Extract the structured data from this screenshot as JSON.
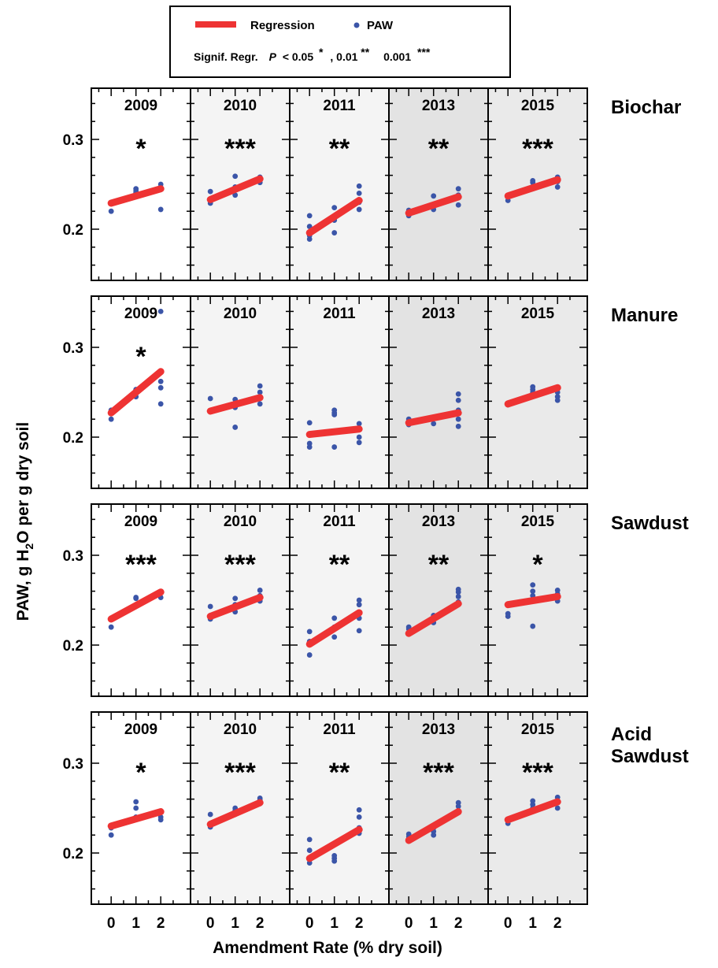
{
  "legend": {
    "regression_label": "Regression",
    "paw_label": "PAW",
    "signif_prefix": "Signif. Regr.",
    "p_label": "P",
    "threshold_1": "< 0.05",
    "star_1": "*",
    "threshold_2": ", 0.01",
    "star_2": "**",
    "threshold_3": "0.001",
    "star_3": "***"
  },
  "colors": {
    "regression": "#ee3333",
    "points": "#3b55a8",
    "panel_white": "#ffffff",
    "panel_light": "#f4f4f4",
    "panel_mid": "#eaeaea",
    "panel_dark": "#e3e3e3"
  },
  "axes": {
    "ylabel": "PAW, g H2O per g dry soil",
    "ylabel_main": "PAW, g H",
    "ylabel_sub": "2",
    "ylabel_rest": "O per g dry soil",
    "xlabel": "Amendment Rate (% dry soil)",
    "yticks": [
      "0.3",
      "0.2"
    ],
    "xticks": [
      "0",
      "1",
      "2"
    ]
  },
  "chart_data": {
    "type": "scatter",
    "layout": "small-multiples grid, 4 rows (amendments) x 5 columns (years)",
    "years": [
      "2009",
      "2010",
      "2011",
      "2013",
      "2015"
    ],
    "xlim": [
      -0.8,
      3.2
    ],
    "ylim": [
      0.15,
      0.35
    ],
    "xticks": [
      0,
      1,
      2
    ],
    "yticks": [
      0.2,
      0.3
    ],
    "rows": [
      {
        "amendment": "Biochar",
        "panels": [
          {
            "year": "2009",
            "sig": "*",
            "fit": [
              0.229,
              0.245
            ],
            "points": [
              [
                0,
                0.22
              ],
              [
                0,
                0.229
              ],
              [
                1,
                0.241
              ],
              [
                1,
                0.245
              ],
              [
                1,
                0.243
              ],
              [
                2,
                0.222
              ],
              [
                2,
                0.246
              ],
              [
                2,
                0.25
              ]
            ]
          },
          {
            "year": "2010",
            "sig": "***",
            "fit": [
              0.233,
              0.256
            ],
            "points": [
              [
                0,
                0.229
              ],
              [
                0,
                0.232
              ],
              [
                0,
                0.242
              ],
              [
                1,
                0.238
              ],
              [
                1,
                0.247
              ],
              [
                1,
                0.259
              ],
              [
                2,
                0.252
              ],
              [
                2,
                0.256
              ],
              [
                2,
                0.258
              ]
            ]
          },
          {
            "year": "2011",
            "sig": "**",
            "fit": [
              0.196,
              0.232
            ],
            "points": [
              [
                0,
                0.189
              ],
              [
                0,
                0.193
              ],
              [
                0,
                0.203
              ],
              [
                0,
                0.215
              ],
              [
                1,
                0.196
              ],
              [
                1,
                0.21
              ],
              [
                1,
                0.224
              ],
              [
                2,
                0.222
              ],
              [
                2,
                0.23
              ],
              [
                2,
                0.24
              ],
              [
                2,
                0.248
              ]
            ]
          },
          {
            "year": "2013",
            "sig": "**",
            "fit": [
              0.218,
              0.236
            ],
            "points": [
              [
                0,
                0.215
              ],
              [
                0,
                0.219
              ],
              [
                0,
                0.221
              ],
              [
                1,
                0.222
              ],
              [
                1,
                0.227
              ],
              [
                1,
                0.237
              ],
              [
                2,
                0.227
              ],
              [
                2,
                0.238
              ],
              [
                2,
                0.245
              ]
            ]
          },
          {
            "year": "2015",
            "sig": "***",
            "fit": [
              0.237,
              0.255
            ],
            "points": [
              [
                0,
                0.232
              ],
              [
                0,
                0.237
              ],
              [
                1,
                0.245
              ],
              [
                1,
                0.252
              ],
              [
                1,
                0.254
              ],
              [
                2,
                0.247
              ],
              [
                2,
                0.253
              ],
              [
                2,
                0.258
              ]
            ]
          }
        ]
      },
      {
        "amendment": "Manure",
        "panels": [
          {
            "year": "2009",
            "sig": "*",
            "fit": [
              0.227,
              0.273
            ],
            "points": [
              [
                0,
                0.22
              ],
              [
                0,
                0.227
              ],
              [
                0,
                0.23
              ],
              [
                1,
                0.245
              ],
              [
                1,
                0.25
              ],
              [
                1,
                0.253
              ],
              [
                2,
                0.237
              ],
              [
                2,
                0.255
              ],
              [
                2,
                0.262
              ],
              [
                2,
                0.34
              ]
            ]
          },
          {
            "year": "2010",
            "sig": "",
            "fit": [
              0.229,
              0.244
            ],
            "points": [
              [
                0,
                0.229
              ],
              [
                0,
                0.243
              ],
              [
                1,
                0.211
              ],
              [
                1,
                0.233
              ],
              [
                1,
                0.242
              ],
              [
                2,
                0.237
              ],
              [
                2,
                0.25
              ],
              [
                2,
                0.257
              ]
            ]
          },
          {
            "year": "2011",
            "sig": "",
            "fit": [
              0.203,
              0.209
            ],
            "points": [
              [
                0,
                0.189
              ],
              [
                0,
                0.193
              ],
              [
                0,
                0.216
              ],
              [
                1,
                0.189
              ],
              [
                1,
                0.225
              ],
              [
                1,
                0.227
              ],
              [
                1,
                0.23
              ],
              [
                2,
                0.194
              ],
              [
                2,
                0.2
              ],
              [
                2,
                0.21
              ],
              [
                2,
                0.215
              ]
            ]
          },
          {
            "year": "2013",
            "sig": "",
            "fit": [
              0.216,
              0.227
            ],
            "points": [
              [
                0,
                0.214
              ],
              [
                0,
                0.218
              ],
              [
                0,
                0.22
              ],
              [
                1,
                0.215
              ],
              [
                1,
                0.222
              ],
              [
                2,
                0.212
              ],
              [
                2,
                0.22
              ],
              [
                2,
                0.23
              ],
              [
                2,
                0.241
              ],
              [
                2,
                0.248
              ]
            ]
          },
          {
            "year": "2015",
            "sig": "",
            "fit": [
              0.237,
              0.255
            ],
            "points": [
              [
                0,
                0.236
              ],
              [
                1,
                0.25
              ],
              [
                1,
                0.253
              ],
              [
                1,
                0.256
              ],
              [
                2,
                0.241
              ],
              [
                2,
                0.245
              ],
              [
                2,
                0.25
              ]
            ]
          }
        ]
      },
      {
        "amendment": "Sawdust",
        "panels": [
          {
            "year": "2009",
            "sig": "***",
            "fit": [
              0.229,
              0.259
            ],
            "points": [
              [
                0,
                0.22
              ],
              [
                0,
                0.23
              ],
              [
                1,
                0.252
              ],
              [
                1,
                0.253
              ],
              [
                2,
                0.253
              ],
              [
                2,
                0.258
              ]
            ]
          },
          {
            "year": "2010",
            "sig": "***",
            "fit": [
              0.232,
              0.253
            ],
            "points": [
              [
                0,
                0.229
              ],
              [
                0,
                0.233
              ],
              [
                0,
                0.243
              ],
              [
                1,
                0.237
              ],
              [
                1,
                0.245
              ],
              [
                1,
                0.252
              ],
              [
                2,
                0.249
              ],
              [
                2,
                0.255
              ],
              [
                2,
                0.261
              ]
            ]
          },
          {
            "year": "2011",
            "sig": "**",
            "fit": [
              0.201,
              0.236
            ],
            "points": [
              [
                0,
                0.189
              ],
              [
                0,
                0.204
              ],
              [
                0,
                0.215
              ],
              [
                1,
                0.209
              ],
              [
                1,
                0.22
              ],
              [
                1,
                0.23
              ],
              [
                2,
                0.216
              ],
              [
                2,
                0.23
              ],
              [
                2,
                0.245
              ],
              [
                2,
                0.25
              ]
            ]
          },
          {
            "year": "2013",
            "sig": "**",
            "fit": [
              0.213,
              0.246
            ],
            "points": [
              [
                0,
                0.213
              ],
              [
                0,
                0.218
              ],
              [
                0,
                0.22
              ],
              [
                1,
                0.225
              ],
              [
                1,
                0.229
              ],
              [
                1,
                0.233
              ],
              [
                2,
                0.248
              ],
              [
                2,
                0.254
              ],
              [
                2,
                0.259
              ],
              [
                2,
                0.262
              ]
            ]
          },
          {
            "year": "2015",
            "sig": "*",
            "fit": [
              0.245,
              0.254
            ],
            "points": [
              [
                0,
                0.232
              ],
              [
                0,
                0.235
              ],
              [
                1,
                0.221
              ],
              [
                1,
                0.255
              ],
              [
                1,
                0.26
              ],
              [
                1,
                0.267
              ],
              [
                2,
                0.249
              ],
              [
                2,
                0.257
              ],
              [
                2,
                0.261
              ]
            ]
          }
        ]
      },
      {
        "amendment": "Acid Sawdust",
        "panels": [
          {
            "year": "2009",
            "sig": "*",
            "fit": [
              0.23,
              0.246
            ],
            "points": [
              [
                0,
                0.22
              ],
              [
                0,
                0.228
              ],
              [
                1,
                0.24
              ],
              [
                1,
                0.25
              ],
              [
                1,
                0.257
              ],
              [
                2,
                0.237
              ],
              [
                2,
                0.24
              ],
              [
                2,
                0.246
              ]
            ]
          },
          {
            "year": "2010",
            "sig": "***",
            "fit": [
              0.232,
              0.256
            ],
            "points": [
              [
                0,
                0.229
              ],
              [
                0,
                0.233
              ],
              [
                0,
                0.243
              ],
              [
                1,
                0.243
              ],
              [
                1,
                0.247
              ],
              [
                1,
                0.25
              ],
              [
                2,
                0.255
              ],
              [
                2,
                0.259
              ],
              [
                2,
                0.261
              ]
            ]
          },
          {
            "year": "2011",
            "sig": "**",
            "fit": [
              0.194,
              0.226
            ],
            "points": [
              [
                0,
                0.189
              ],
              [
                0,
                0.193
              ],
              [
                0,
                0.203
              ],
              [
                0,
                0.215
              ],
              [
                1,
                0.191
              ],
              [
                1,
                0.194
              ],
              [
                1,
                0.197
              ],
              [
                2,
                0.222
              ],
              [
                2,
                0.228
              ],
              [
                2,
                0.24
              ],
              [
                2,
                0.248
              ]
            ]
          },
          {
            "year": "2013",
            "sig": "***",
            "fit": [
              0.214,
              0.246
            ],
            "points": [
              [
                0,
                0.214
              ],
              [
                0,
                0.218
              ],
              [
                0,
                0.221
              ],
              [
                1,
                0.22
              ],
              [
                1,
                0.224
              ],
              [
                1,
                0.228
              ],
              [
                2,
                0.247
              ],
              [
                2,
                0.252
              ],
              [
                2,
                0.256
              ]
            ]
          },
          {
            "year": "2015",
            "sig": "***",
            "fit": [
              0.237,
              0.257
            ],
            "points": [
              [
                0,
                0.233
              ],
              [
                0,
                0.237
              ],
              [
                1,
                0.25
              ],
              [
                1,
                0.254
              ],
              [
                1,
                0.258
              ],
              [
                2,
                0.25
              ],
              [
                2,
                0.256
              ],
              [
                2,
                0.262
              ]
            ]
          }
        ]
      }
    ]
  }
}
